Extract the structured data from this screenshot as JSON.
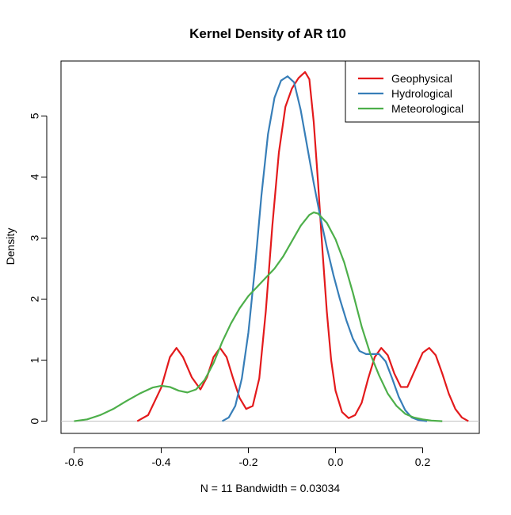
{
  "chart_data": {
    "type": "line",
    "title": "Kernel Density of AR t10",
    "xlabel": "N = 11   Bandwidth = 0.03034",
    "ylabel": "Density",
    "xlim": [
      -0.63,
      0.33
    ],
    "ylim": [
      -0.2,
      5.9
    ],
    "x_ticks": [
      -0.6,
      -0.4,
      -0.2,
      0.0,
      0.2
    ],
    "x_tick_labels": [
      "-0.6",
      "-0.4",
      "-0.2",
      "0.0",
      "0.2"
    ],
    "y_ticks": [
      0,
      1,
      2,
      3,
      4,
      5
    ],
    "y_tick_labels": [
      "0",
      "1",
      "2",
      "3",
      "4",
      "5"
    ],
    "grid": false,
    "baseline_y": 0,
    "legend_position": "top-right",
    "series": [
      {
        "name": "Geophysical",
        "color": "#E31A1C",
        "points": [
          [
            -0.455,
            0.0
          ],
          [
            -0.43,
            0.1
          ],
          [
            -0.4,
            0.55
          ],
          [
            -0.38,
            1.05
          ],
          [
            -0.365,
            1.2
          ],
          [
            -0.35,
            1.05
          ],
          [
            -0.33,
            0.72
          ],
          [
            -0.31,
            0.52
          ],
          [
            -0.295,
            0.72
          ],
          [
            -0.28,
            1.05
          ],
          [
            -0.265,
            1.2
          ],
          [
            -0.25,
            1.05
          ],
          [
            -0.235,
            0.7
          ],
          [
            -0.22,
            0.38
          ],
          [
            -0.205,
            0.2
          ],
          [
            -0.19,
            0.25
          ],
          [
            -0.175,
            0.7
          ],
          [
            -0.16,
            1.8
          ],
          [
            -0.145,
            3.2
          ],
          [
            -0.13,
            4.4
          ],
          [
            -0.115,
            5.15
          ],
          [
            -0.1,
            5.45
          ],
          [
            -0.085,
            5.62
          ],
          [
            -0.07,
            5.72
          ],
          [
            -0.06,
            5.6
          ],
          [
            -0.05,
            4.9
          ],
          [
            -0.04,
            3.9
          ],
          [
            -0.03,
            2.8
          ],
          [
            -0.02,
            1.8
          ],
          [
            -0.01,
            1.0
          ],
          [
            0.0,
            0.5
          ],
          [
            0.015,
            0.15
          ],
          [
            0.03,
            0.05
          ],
          [
            0.045,
            0.1
          ],
          [
            0.06,
            0.3
          ],
          [
            0.075,
            0.7
          ],
          [
            0.09,
            1.05
          ],
          [
            0.105,
            1.2
          ],
          [
            0.12,
            1.08
          ],
          [
            0.135,
            0.78
          ],
          [
            0.15,
            0.56
          ],
          [
            0.165,
            0.56
          ],
          [
            0.18,
            0.8
          ],
          [
            0.2,
            1.12
          ],
          [
            0.215,
            1.2
          ],
          [
            0.23,
            1.08
          ],
          [
            0.245,
            0.78
          ],
          [
            0.26,
            0.45
          ],
          [
            0.275,
            0.2
          ],
          [
            0.29,
            0.06
          ],
          [
            0.305,
            0.0
          ]
        ]
      },
      {
        "name": "Hydrological",
        "color": "#377EB8",
        "points": [
          [
            -0.26,
            0.0
          ],
          [
            -0.245,
            0.06
          ],
          [
            -0.23,
            0.25
          ],
          [
            -0.215,
            0.7
          ],
          [
            -0.2,
            1.45
          ],
          [
            -0.185,
            2.5
          ],
          [
            -0.17,
            3.7
          ],
          [
            -0.155,
            4.7
          ],
          [
            -0.14,
            5.3
          ],
          [
            -0.125,
            5.58
          ],
          [
            -0.11,
            5.65
          ],
          [
            -0.095,
            5.55
          ],
          [
            -0.08,
            5.1
          ],
          [
            -0.065,
            4.5
          ],
          [
            -0.05,
            3.9
          ],
          [
            -0.035,
            3.35
          ],
          [
            -0.02,
            2.85
          ],
          [
            -0.005,
            2.4
          ],
          [
            0.01,
            2.0
          ],
          [
            0.025,
            1.65
          ],
          [
            0.04,
            1.35
          ],
          [
            0.055,
            1.15
          ],
          [
            0.07,
            1.1
          ],
          [
            0.085,
            1.1
          ],
          [
            0.1,
            1.1
          ],
          [
            0.115,
            0.98
          ],
          [
            0.13,
            0.7
          ],
          [
            0.145,
            0.4
          ],
          [
            0.16,
            0.18
          ],
          [
            0.175,
            0.06
          ],
          [
            0.19,
            0.02
          ],
          [
            0.21,
            0.0
          ]
        ]
      },
      {
        "name": "Meteorological",
        "color": "#4DAF4A",
        "points": [
          [
            -0.6,
            0.0
          ],
          [
            -0.57,
            0.03
          ],
          [
            -0.54,
            0.1
          ],
          [
            -0.51,
            0.2
          ],
          [
            -0.48,
            0.33
          ],
          [
            -0.45,
            0.45
          ],
          [
            -0.42,
            0.55
          ],
          [
            -0.4,
            0.58
          ],
          [
            -0.38,
            0.56
          ],
          [
            -0.36,
            0.5
          ],
          [
            -0.34,
            0.47
          ],
          [
            -0.32,
            0.52
          ],
          [
            -0.3,
            0.68
          ],
          [
            -0.28,
            0.95
          ],
          [
            -0.26,
            1.3
          ],
          [
            -0.24,
            1.6
          ],
          [
            -0.22,
            1.85
          ],
          [
            -0.2,
            2.05
          ],
          [
            -0.18,
            2.2
          ],
          [
            -0.16,
            2.35
          ],
          [
            -0.14,
            2.5
          ],
          [
            -0.12,
            2.7
          ],
          [
            -0.1,
            2.95
          ],
          [
            -0.08,
            3.2
          ],
          [
            -0.06,
            3.38
          ],
          [
            -0.05,
            3.42
          ],
          [
            -0.04,
            3.4
          ],
          [
            -0.02,
            3.25
          ],
          [
            0.0,
            2.98
          ],
          [
            0.02,
            2.6
          ],
          [
            0.04,
            2.1
          ],
          [
            0.06,
            1.55
          ],
          [
            0.08,
            1.1
          ],
          [
            0.1,
            0.75
          ],
          [
            0.12,
            0.45
          ],
          [
            0.14,
            0.25
          ],
          [
            0.16,
            0.12
          ],
          [
            0.18,
            0.06
          ],
          [
            0.2,
            0.03
          ],
          [
            0.22,
            0.01
          ],
          [
            0.245,
            0.0
          ]
        ]
      }
    ]
  }
}
